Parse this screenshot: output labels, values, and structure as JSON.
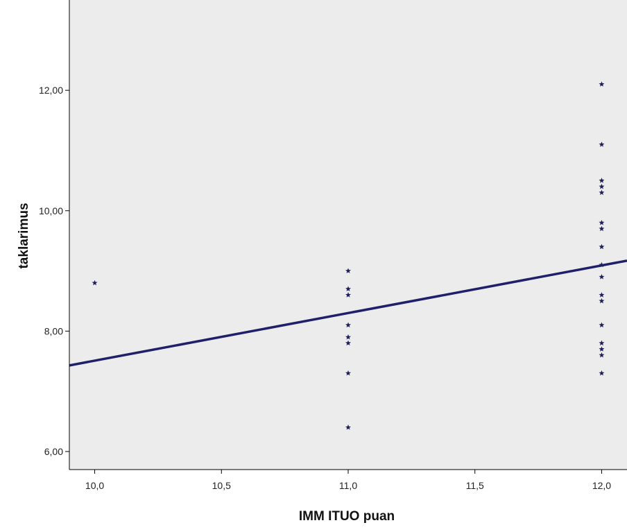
{
  "chart_data": {
    "type": "scatter",
    "title": "",
    "xlabel": "IMM ITUO puan",
    "ylabel": "taklarimus",
    "xlim": [
      9.9,
      12.1
    ],
    "ylim": [
      5.7,
      13.5
    ],
    "x_ticks": [
      10.0,
      10.5,
      11.0,
      11.5,
      12.0
    ],
    "x_tick_labels": [
      "10,0",
      "10,5",
      "11,0",
      "11,5",
      "12,0"
    ],
    "y_ticks": [
      6.0,
      8.0,
      10.0,
      12.0
    ],
    "y_tick_labels": [
      "6,00",
      "8,00",
      "10,00",
      "12,00"
    ],
    "grid": false,
    "marker": "star",
    "colors": {
      "plot_background": "#ececec",
      "points": "#1e1e5c",
      "fit_line": "#1f1f6b",
      "frame": "#000000"
    },
    "series": [
      {
        "points": [
          {
            "x": 10.0,
            "y": 8.8
          },
          {
            "x": 11.0,
            "y": 9.0
          },
          {
            "x": 11.0,
            "y": 8.7
          },
          {
            "x": 11.0,
            "y": 8.6
          },
          {
            "x": 11.0,
            "y": 8.1
          },
          {
            "x": 11.0,
            "y": 7.9
          },
          {
            "x": 11.0,
            "y": 7.8
          },
          {
            "x": 11.0,
            "y": 7.3
          },
          {
            "x": 11.0,
            "y": 6.4
          },
          {
            "x": 12.0,
            "y": 12.1
          },
          {
            "x": 12.0,
            "y": 11.1
          },
          {
            "x": 12.0,
            "y": 10.5
          },
          {
            "x": 12.0,
            "y": 10.4
          },
          {
            "x": 12.0,
            "y": 10.3
          },
          {
            "x": 12.0,
            "y": 9.8
          },
          {
            "x": 12.0,
            "y": 9.7
          },
          {
            "x": 12.0,
            "y": 9.4
          },
          {
            "x": 12.0,
            "y": 9.1
          },
          {
            "x": 12.0,
            "y": 8.9
          },
          {
            "x": 12.0,
            "y": 8.6
          },
          {
            "x": 12.0,
            "y": 8.5
          },
          {
            "x": 12.0,
            "y": 8.1
          },
          {
            "x": 12.0,
            "y": 7.8
          },
          {
            "x": 12.0,
            "y": 7.7
          },
          {
            "x": 12.0,
            "y": 7.6
          },
          {
            "x": 12.0,
            "y": 7.3
          }
        ]
      }
    ],
    "fit_line": {
      "type": "linear",
      "points": [
        {
          "x": 9.9,
          "y": 7.43
        },
        {
          "x": 12.1,
          "y": 9.17
        }
      ]
    }
  }
}
